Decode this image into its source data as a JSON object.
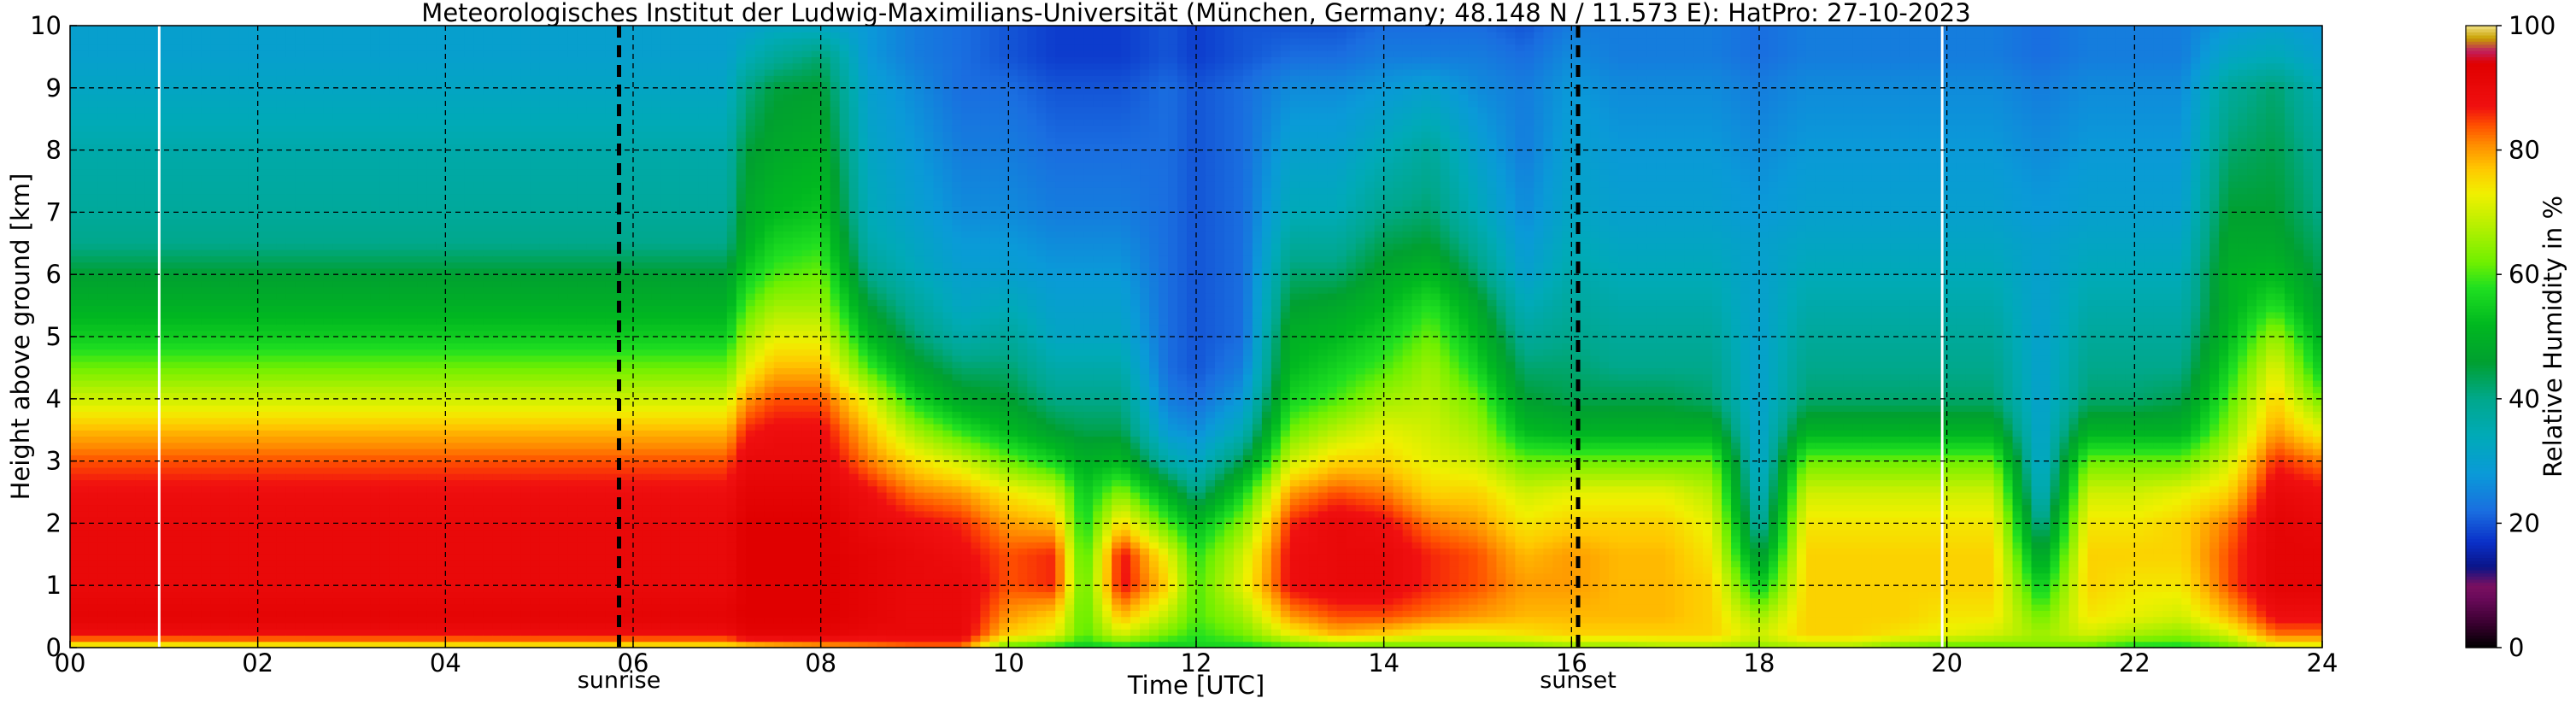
{
  "chart_data": {
    "type": "heatmap",
    "title": "Meteorologisches Institut der Ludwig-Maximilians-Universität (München, Germany; 48.148 N / 11.573 E):    HatPro: 27-10-2023",
    "xlabel": "Time [UTC]",
    "ylabel": "Height above ground [km]",
    "colorbar_label": "Relative Humidity in %",
    "xlim": [
      0,
      24
    ],
    "ylim": [
      0,
      10
    ],
    "clim": [
      0,
      100
    ],
    "x_ticks": [
      0,
      2,
      4,
      6,
      8,
      10,
      12,
      14,
      16,
      18,
      20,
      22,
      24
    ],
    "x_tick_labels": [
      "00",
      "02",
      "04",
      "06",
      "08",
      "10",
      "12",
      "14",
      "16",
      "18",
      "20",
      "22",
      "24"
    ],
    "y_ticks": [
      0,
      1,
      2,
      3,
      4,
      5,
      6,
      7,
      8,
      9,
      10
    ],
    "y_tick_labels": [
      "0",
      "1",
      "2",
      "3",
      "4",
      "5",
      "6",
      "7",
      "8",
      "9",
      "10"
    ],
    "colorbar_ticks": [
      0,
      20,
      40,
      60,
      80,
      100
    ],
    "colorbar_tick_labels": [
      "0",
      "20",
      "40",
      "60",
      "80",
      "100"
    ],
    "grid": true,
    "events": [
      {
        "label": "sunrise",
        "time": 5.85
      },
      {
        "label": "sunset",
        "time": 16.07
      }
    ],
    "data_gaps": [
      0.95,
      19.95
    ],
    "colormap": [
      [
        0,
        "#000000"
      ],
      [
        4,
        "#3a0030"
      ],
      [
        8,
        "#6a0a5a"
      ],
      [
        10,
        "#7a1060"
      ],
      [
        13,
        "#0a1488"
      ],
      [
        17,
        "#0a30c8"
      ],
      [
        22,
        "#1a6ee0"
      ],
      [
        28,
        "#0a9ad8"
      ],
      [
        34,
        "#00aab8"
      ],
      [
        40,
        "#00a88c"
      ],
      [
        46,
        "#00a030"
      ],
      [
        52,
        "#00b820"
      ],
      [
        58,
        "#20e020"
      ],
      [
        62,
        "#70f000"
      ],
      [
        68,
        "#b8f000"
      ],
      [
        73,
        "#f0f000"
      ],
      [
        77,
        "#ffc800"
      ],
      [
        81,
        "#ff8c00"
      ],
      [
        84,
        "#ff5000"
      ],
      [
        87,
        "#f01010"
      ],
      [
        94,
        "#e00000"
      ],
      [
        96,
        "#c02060"
      ],
      [
        98,
        "#c8a000"
      ],
      [
        100,
        "#f0e080"
      ]
    ],
    "time_nodes": [
      0,
      0.9,
      1.0,
      7.0,
      7.2,
      7.5,
      8.0,
      8.5,
      9.0,
      9.5,
      10.0,
      10.5,
      10.8,
      11.2,
      11.7,
      12.0,
      12.5,
      13.0,
      13.5,
      14.0,
      14.5,
      15.0,
      15.5,
      16.0,
      16.5,
      17.0,
      17.5,
      18.0,
      18.5,
      19.0,
      19.5,
      20.0,
      20.5,
      21.0,
      21.5,
      22.0,
      22.5,
      23.0,
      23.5,
      24.0
    ],
    "height_nodes": [
      0,
      0.2,
      0.5,
      1.0,
      1.5,
      2.0,
      2.5,
      3.0,
      3.5,
      4.0,
      4.5,
      5.0,
      5.5,
      6.0,
      6.5,
      7.0,
      8.0,
      9.0,
      9.5,
      10.0
    ],
    "rh_profiles": [
      [
        70,
        88,
        92,
        90,
        90,
        90,
        88,
        84,
        78,
        70,
        62,
        55,
        50,
        46,
        40,
        38,
        36,
        32,
        30,
        30
      ],
      [
        70,
        88,
        92,
        90,
        90,
        90,
        88,
        84,
        78,
        70,
        62,
        55,
        50,
        46,
        40,
        38,
        36,
        32,
        30,
        30
      ],
      [
        70,
        88,
        92,
        90,
        90,
        90,
        88,
        84,
        78,
        70,
        62,
        55,
        50,
        46,
        40,
        38,
        36,
        32,
        30,
        30
      ],
      [
        72,
        88,
        92,
        90,
        90,
        90,
        88,
        84,
        78,
        70,
        62,
        55,
        50,
        46,
        40,
        38,
        36,
        32,
        30,
        30
      ],
      [
        74,
        92,
        94,
        94,
        94,
        94,
        92,
        90,
        86,
        80,
        72,
        66,
        60,
        55,
        50,
        48,
        45,
        40,
        34,
        30
      ],
      [
        76,
        92,
        94,
        94,
        94,
        94,
        92,
        90,
        88,
        84,
        78,
        72,
        66,
        60,
        56,
        52,
        48,
        45,
        38,
        32
      ],
      [
        78,
        92,
        94,
        94,
        94,
        94,
        92,
        90,
        88,
        84,
        78,
        72,
        66,
        62,
        58,
        54,
        50,
        46,
        42,
        32
      ],
      [
        80,
        90,
        92,
        92,
        92,
        90,
        88,
        82,
        78,
        72,
        60,
        52,
        46,
        40,
        36,
        34,
        32,
        30,
        28,
        28
      ],
      [
        82,
        90,
        90,
        90,
        90,
        88,
        82,
        75,
        66,
        56,
        48,
        42,
        38,
        34,
        32,
        30,
        28,
        26,
        24,
        24
      ],
      [
        82,
        90,
        90,
        90,
        88,
        86,
        80,
        70,
        58,
        48,
        42,
        36,
        32,
        30,
        28,
        26,
        24,
        22,
        22,
        22
      ],
      [
        60,
        76,
        80,
        84,
        84,
        80,
        74,
        62,
        52,
        46,
        42,
        38,
        34,
        30,
        28,
        26,
        24,
        22,
        20,
        20
      ],
      [
        56,
        72,
        76,
        86,
        86,
        78,
        70,
        56,
        46,
        40,
        36,
        32,
        30,
        28,
        26,
        24,
        22,
        20,
        18,
        18
      ],
      [
        54,
        60,
        60,
        60,
        58,
        56,
        54,
        50,
        44,
        40,
        36,
        32,
        30,
        28,
        26,
        24,
        22,
        20,
        18,
        18
      ],
      [
        56,
        70,
        78,
        88,
        88,
        76,
        64,
        52,
        44,
        40,
        36,
        32,
        30,
        28,
        26,
        24,
        22,
        20,
        18,
        18
      ],
      [
        54,
        62,
        68,
        76,
        72,
        60,
        50,
        36,
        28,
        24,
        22,
        22,
        22,
        22,
        22,
        22,
        22,
        22,
        20,
        20
      ],
      [
        56,
        58,
        60,
        60,
        58,
        52,
        40,
        32,
        26,
        22,
        20,
        20,
        20,
        20,
        20,
        20,
        20,
        20,
        18,
        18
      ],
      [
        56,
        62,
        66,
        72,
        70,
        64,
        56,
        44,
        34,
        28,
        24,
        22,
        22,
        22,
        22,
        22,
        22,
        22,
        20,
        20
      ],
      [
        58,
        72,
        80,
        88,
        88,
        86,
        80,
        70,
        62,
        56,
        52,
        50,
        46,
        42,
        38,
        34,
        30,
        26,
        22,
        20
      ],
      [
        60,
        78,
        84,
        90,
        90,
        90,
        84,
        76,
        68,
        60,
        56,
        52,
        48,
        42,
        38,
        34,
        30,
        26,
        22,
        20
      ],
      [
        60,
        76,
        84,
        90,
        90,
        88,
        82,
        76,
        72,
        66,
        60,
        56,
        52,
        48,
        44,
        40,
        34,
        28,
        24,
        22
      ],
      [
        62,
        72,
        82,
        86,
        86,
        82,
        76,
        72,
        70,
        68,
        66,
        62,
        58,
        52,
        46,
        42,
        38,
        30,
        24,
        22
      ],
      [
        62,
        72,
        80,
        84,
        84,
        80,
        76,
        70,
        66,
        62,
        56,
        52,
        48,
        42,
        38,
        34,
        30,
        26,
        24,
        22
      ],
      [
        62,
        74,
        78,
        80,
        78,
        74,
        70,
        62,
        52,
        46,
        42,
        38,
        34,
        30,
        28,
        26,
        24,
        24,
        22,
        20
      ],
      [
        64,
        76,
        78,
        80,
        80,
        76,
        72,
        62,
        50,
        44,
        42,
        40,
        38,
        36,
        34,
        32,
        30,
        28,
        26,
        24
      ],
      [
        64,
        76,
        78,
        78,
        78,
        76,
        72,
        62,
        50,
        44,
        40,
        38,
        36,
        34,
        32,
        30,
        28,
        26,
        24,
        24
      ],
      [
        66,
        76,
        78,
        78,
        78,
        76,
        72,
        62,
        50,
        44,
        40,
        38,
        36,
        34,
        32,
        30,
        28,
        26,
        24,
        24
      ],
      [
        66,
        76,
        76,
        76,
        74,
        72,
        68,
        62,
        50,
        42,
        40,
        38,
        36,
        34,
        32,
        30,
        28,
        26,
        24,
        24
      ],
      [
        64,
        70,
        66,
        54,
        44,
        36,
        32,
        30,
        30,
        30,
        30,
        30,
        30,
        30,
        30,
        28,
        26,
        24,
        22,
        22
      ],
      [
        66,
        76,
        76,
        76,
        76,
        74,
        70,
        62,
        50,
        42,
        40,
        38,
        36,
        34,
        32,
        30,
        28,
        26,
        24,
        24
      ],
      [
        66,
        76,
        76,
        76,
        76,
        74,
        70,
        62,
        50,
        42,
        40,
        38,
        36,
        34,
        32,
        30,
        28,
        26,
        24,
        24
      ],
      [
        62,
        74,
        76,
        76,
        76,
        74,
        70,
        62,
        50,
        42,
        40,
        38,
        36,
        34,
        32,
        30,
        28,
        26,
        24,
        24
      ],
      [
        60,
        72,
        74,
        76,
        76,
        74,
        70,
        62,
        50,
        42,
        40,
        38,
        36,
        34,
        32,
        30,
        28,
        26,
        24,
        24
      ],
      [
        60,
        70,
        74,
        76,
        76,
        74,
        70,
        62,
        50,
        42,
        40,
        38,
        36,
        34,
        32,
        30,
        28,
        26,
        24,
        24
      ],
      [
        62,
        66,
        62,
        54,
        46,
        38,
        32,
        30,
        30,
        30,
        30,
        30,
        30,
        30,
        30,
        28,
        26,
        24,
        22,
        22
      ],
      [
        60,
        70,
        74,
        76,
        76,
        74,
        70,
        62,
        50,
        42,
        40,
        38,
        36,
        34,
        32,
        30,
        28,
        26,
        24,
        24
      ],
      [
        56,
        66,
        72,
        74,
        76,
        74,
        70,
        62,
        50,
        42,
        40,
        38,
        36,
        34,
        32,
        30,
        28,
        26,
        24,
        24
      ],
      [
        56,
        64,
        70,
        74,
        76,
        76,
        72,
        62,
        50,
        44,
        40,
        38,
        36,
        34,
        32,
        30,
        28,
        26,
        24,
        24
      ],
      [
        60,
        70,
        78,
        84,
        84,
        82,
        76,
        70,
        64,
        60,
        56,
        52,
        50,
        50,
        48,
        46,
        42,
        38,
        32,
        28
      ],
      [
        70,
        82,
        88,
        92,
        92,
        92,
        90,
        86,
        80,
        76,
        72,
        66,
        58,
        52,
        48,
        46,
        44,
        42,
        34,
        30
      ],
      [
        70,
        82,
        88,
        92,
        92,
        90,
        88,
        82,
        72,
        62,
        54,
        50,
        46,
        44,
        42,
        40,
        38,
        34,
        30,
        28
      ]
    ]
  }
}
